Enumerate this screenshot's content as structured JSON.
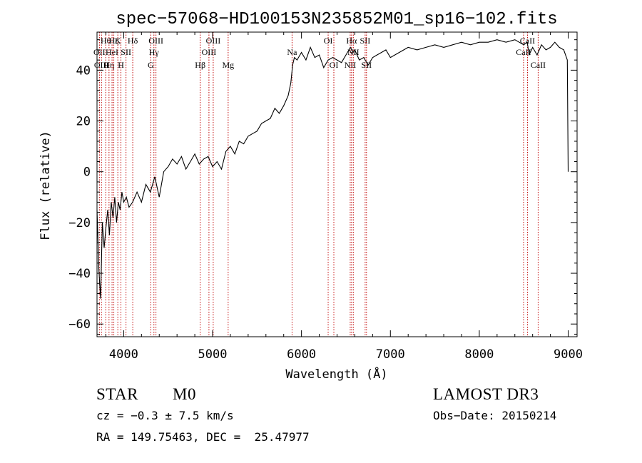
{
  "chart_data": {
    "type": "line",
    "title": "spec−57068−HD100153N235852M01_sp16−102.fits",
    "xlabel": "Wavelength (Å)",
    "ylabel": "Flux (relative)",
    "xlim": [
      3700,
      9100
    ],
    "ylim": [
      -65,
      55
    ],
    "xticks": [
      4000,
      5000,
      6000,
      7000,
      8000,
      9000
    ],
    "yticks": [
      -60,
      -40,
      -20,
      0,
      20,
      40
    ],
    "ytick_labels": [
      "−60",
      "−40",
      "−20",
      "0",
      "20",
      "40"
    ],
    "grid": false,
    "series": [
      {
        "color": "#000000",
        "x": [
          3700,
          3720,
          3740,
          3760,
          3780,
          3800,
          3820,
          3840,
          3860,
          3880,
          3900,
          3920,
          3940,
          3960,
          3980,
          4000,
          4030,
          4060,
          4100,
          4150,
          4200,
          4250,
          4300,
          4350,
          4400,
          4450,
          4500,
          4550,
          4600,
          4650,
          4700,
          4750,
          4800,
          4850,
          4900,
          4950,
          5000,
          5050,
          5100,
          5150,
          5200,
          5250,
          5300,
          5350,
          5400,
          5450,
          5500,
          5550,
          5600,
          5650,
          5700,
          5750,
          5800,
          5850,
          5880,
          5900,
          5920,
          5950,
          6000,
          6050,
          6100,
          6150,
          6200,
          6250,
          6300,
          6350,
          6400,
          6450,
          6500,
          6550,
          6580,
          6600,
          6650,
          6700,
          6750,
          6800,
          6850,
          6900,
          6950,
          7000,
          7100,
          7200,
          7300,
          7400,
          7500,
          7600,
          7700,
          7800,
          7900,
          8000,
          8100,
          8200,
          8300,
          8400,
          8500,
          8540,
          8560,
          8600,
          8650,
          8700,
          8750,
          8800,
          8850,
          8900,
          8950,
          8990,
          9000
        ],
        "y": [
          -15,
          -38,
          -50,
          -20,
          -30,
          -22,
          -15,
          -25,
          -12,
          -18,
          -10,
          -20,
          -12,
          -15,
          -8,
          -12,
          -10,
          -14,
          -12,
          -8,
          -12,
          -5,
          -8,
          -2,
          -10,
          0,
          2,
          5,
          3,
          6,
          1,
          4,
          7,
          3,
          5,
          6,
          2,
          4,
          1,
          8,
          10,
          7,
          12,
          11,
          14,
          15,
          16,
          19,
          20,
          21,
          25,
          23,
          26,
          30,
          35,
          42,
          45,
          44,
          47,
          44,
          49,
          45,
          46,
          41,
          44,
          45,
          44,
          43,
          46,
          49,
          47,
          48,
          44,
          45,
          42,
          45,
          46,
          47,
          48,
          45,
          47,
          49,
          48,
          49,
          50,
          49,
          50,
          51,
          50,
          51,
          51,
          52,
          51,
          52,
          50,
          51,
          46,
          49,
          46,
          50,
          48,
          49,
          51,
          49,
          48,
          44,
          0
        ]
      }
    ],
    "lines": [
      {
        "x": 3727,
        "labels": [
          "OII"
        ],
        "row": 2
      },
      {
        "x": 3750,
        "labels": [
          "OIII"
        ],
        "row": 3
      },
      {
        "x": 3798,
        "labels": [
          "Hθ"
        ],
        "row": 1
      },
      {
        "x": 3835,
        "labels": [
          "Hη"
        ],
        "row": 3
      },
      {
        "x": 3869,
        "labels": [
          "HeI"
        ],
        "row": 2
      },
      {
        "x": 3889,
        "labels": [
          "Hζ"
        ],
        "row": 1
      },
      {
        "x": 3934,
        "labels": [
          "K"
        ],
        "row": 1
      },
      {
        "x": 3969,
        "labels": [
          "H"
        ],
        "row": 3
      },
      {
        "x": 4026,
        "labels": [
          "SII"
        ],
        "row": 2
      },
      {
        "x": 4102,
        "labels": [
          "Hδ"
        ],
        "row": 1
      },
      {
        "x": 4304,
        "labels": [
          "G"
        ],
        "row": 3
      },
      {
        "x": 4340,
        "labels": [
          "Hγ"
        ],
        "row": 2
      },
      {
        "x": 4363,
        "labels": [
          "OIII"
        ],
        "row": 1
      },
      {
        "x": 4861,
        "labels": [
          "Hβ"
        ],
        "row": 3
      },
      {
        "x": 4959,
        "labels": [
          "OIII"
        ],
        "row": 2
      },
      {
        "x": 5007,
        "labels": [
          "OIII"
        ],
        "row": 1
      },
      {
        "x": 5175,
        "labels": [
          "Mg"
        ],
        "row": 3
      },
      {
        "x": 5894,
        "labels": [
          "Na"
        ],
        "row": 2
      },
      {
        "x": 6300,
        "labels": [
          "OI"
        ],
        "row": 1
      },
      {
        "x": 6364,
        "labels": [
          "OI"
        ],
        "row": 3
      },
      {
        "x": 6548,
        "labels": [
          "NII"
        ],
        "row": 3
      },
      {
        "x": 6563,
        "labels": [
          "Hα"
        ],
        "row": 1
      },
      {
        "x": 6583,
        "labels": [
          "NII"
        ],
        "row": 2
      },
      {
        "x": 6716,
        "labels": [
          "SII"
        ],
        "row": 1
      },
      {
        "x": 6731,
        "labels": [
          "SII"
        ],
        "row": 3
      },
      {
        "x": 8498,
        "labels": [
          "CaII"
        ],
        "row": 2
      },
      {
        "x": 8542,
        "labels": [
          "CaII"
        ],
        "row": 1
      },
      {
        "x": 8662,
        "labels": [
          "CaII"
        ],
        "row": 3
      }
    ]
  },
  "info": {
    "object_class": "STAR",
    "subclass": "M0",
    "survey": "LAMOST DR3",
    "cz": "cz = −0.3 ± 7.5 km/s",
    "obs_date": "Obs−Date: 20150214",
    "coords": "RA = 149.75463, DEC =  25.47977"
  }
}
